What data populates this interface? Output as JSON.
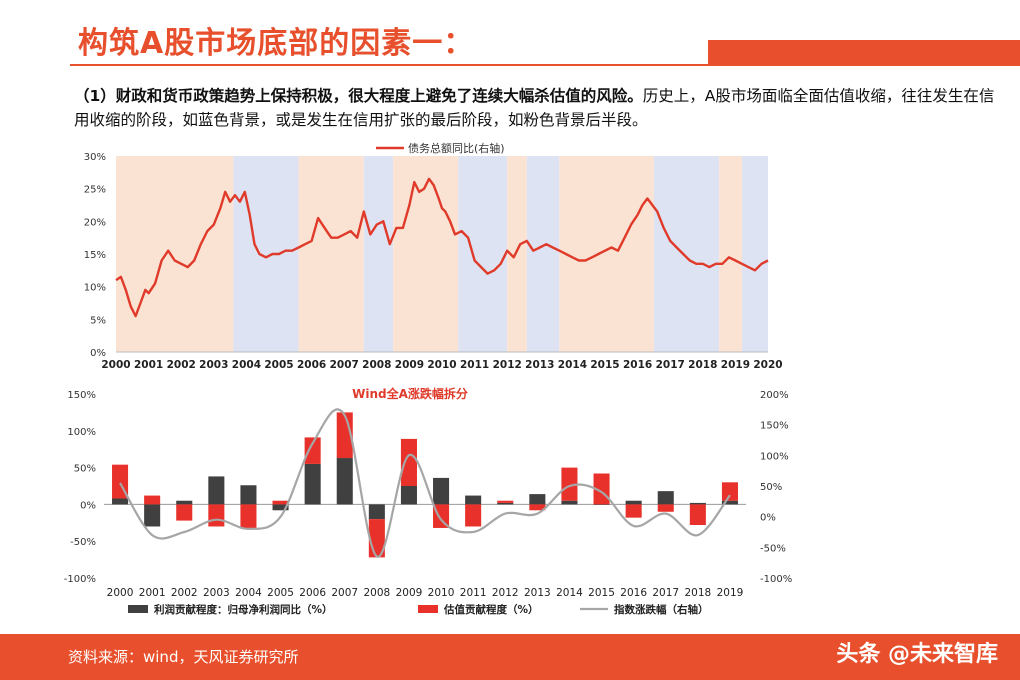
{
  "header": {
    "title": "构筑A股市场底部的因素一：",
    "desc_bold": "（1）财政和货币政策趋势上保持积极，很大程度上避免了连续大幅杀估值的风险。",
    "desc_rest": "历史上，A股市场面临全面估值收缩，往往发生在信用收缩的阶段，如蓝色背景，或是发生在信用扩张的最后阶段，如粉色背景后半段。"
  },
  "footer": {
    "source": "资料来源：wind，天风证券研究所",
    "watermark": "头条 @未来智库"
  },
  "colors": {
    "accent": "#e8502d",
    "pink_band": "#fbe3d3",
    "blue_band": "#dde3f3",
    "line_red": "#e03a2a",
    "bar_dark": "#404040",
    "bar_red": "#e8312a",
    "line_gray": "#a6a6a6"
  },
  "chart_data": [
    {
      "type": "line",
      "legend": [
        "债务总额同比(右轴)"
      ],
      "ylim": [
        0,
        30
      ],
      "yticks": [
        "30%",
        "25%",
        "20%",
        "15%",
        "10%",
        "5%",
        "0%"
      ],
      "xticks": [
        "2000",
        "2001",
        "2002",
        "2003",
        "2004",
        "2005",
        "2006",
        "2007",
        "2008",
        "2009",
        "2010",
        "2011",
        "2012",
        "2013",
        "2014",
        "2015",
        "2016",
        "2017",
        "2018",
        "2019",
        "2020"
      ],
      "background_bands": [
        {
          "from": 2000.0,
          "to": 2003.6,
          "kind": "pink"
        },
        {
          "from": 2003.6,
          "to": 2005.6,
          "kind": "blue"
        },
        {
          "from": 2005.6,
          "to": 2007.6,
          "kind": "pink"
        },
        {
          "from": 2007.6,
          "to": 2008.5,
          "kind": "blue"
        },
        {
          "from": 2008.5,
          "to": 2010.5,
          "kind": "pink"
        },
        {
          "from": 2010.5,
          "to": 2012.0,
          "kind": "blue"
        },
        {
          "from": 2012.0,
          "to": 2012.6,
          "kind": "pink"
        },
        {
          "from": 2012.6,
          "to": 2013.6,
          "kind": "blue"
        },
        {
          "from": 2013.6,
          "to": 2016.5,
          "kind": "pink"
        },
        {
          "from": 2016.5,
          "to": 2018.5,
          "kind": "blue"
        },
        {
          "from": 2018.5,
          "to": 2019.2,
          "kind": "pink"
        },
        {
          "from": 2019.2,
          "to": 2020.0,
          "kind": "blue"
        }
      ],
      "series": [
        {
          "name": "债务总额同比(右轴)",
          "x": [
            2000.0,
            2000.15,
            2000.3,
            2000.45,
            2000.6,
            2000.75,
            2000.9,
            2001.0,
            2001.2,
            2001.4,
            2001.6,
            2001.8,
            2002.0,
            2002.2,
            2002.4,
            2002.6,
            2002.8,
            2003.0,
            2003.2,
            2003.35,
            2003.5,
            2003.65,
            2003.8,
            2003.95,
            2004.1,
            2004.25,
            2004.4,
            2004.6,
            2004.8,
            2005.0,
            2005.2,
            2005.4,
            2005.6,
            2005.8,
            2006.0,
            2006.2,
            2006.4,
            2006.6,
            2006.8,
            2007.0,
            2007.2,
            2007.4,
            2007.6,
            2007.8,
            2008.0,
            2008.2,
            2008.4,
            2008.6,
            2008.8,
            2009.0,
            2009.15,
            2009.3,
            2009.45,
            2009.6,
            2009.75,
            2009.9,
            2010.0,
            2010.1,
            2010.25,
            2010.4,
            2010.6,
            2010.8,
            2011.0,
            2011.2,
            2011.4,
            2011.6,
            2011.8,
            2012.0,
            2012.2,
            2012.4,
            2012.6,
            2012.8,
            2013.0,
            2013.2,
            2013.4,
            2013.6,
            2013.8,
            2014.0,
            2014.2,
            2014.4,
            2014.6,
            2014.8,
            2015.0,
            2015.2,
            2015.4,
            2015.6,
            2015.8,
            2016.0,
            2016.15,
            2016.3,
            2016.45,
            2016.6,
            2016.8,
            2017.0,
            2017.2,
            2017.4,
            2017.6,
            2017.8,
            2018.0,
            2018.2,
            2018.4,
            2018.6,
            2018.8,
            2019.0,
            2019.2,
            2019.4,
            2019.6,
            2019.8,
            2020.0
          ],
          "values": [
            11.0,
            11.5,
            9.5,
            7.0,
            5.5,
            7.5,
            9.5,
            9.0,
            10.5,
            14.0,
            15.5,
            14.0,
            13.5,
            13.0,
            14.0,
            16.5,
            18.5,
            19.5,
            22.0,
            24.5,
            23.0,
            24.0,
            23.0,
            24.5,
            21.0,
            16.5,
            15.0,
            14.5,
            15.0,
            15.0,
            15.5,
            15.5,
            16.0,
            16.5,
            17.0,
            20.5,
            19.0,
            17.5,
            17.5,
            18.0,
            18.5,
            17.5,
            21.5,
            18.0,
            19.5,
            20.0,
            16.5,
            19.0,
            19.0,
            22.5,
            26.0,
            24.5,
            25.0,
            26.5,
            25.5,
            23.5,
            22.0,
            21.5,
            20.0,
            18.0,
            18.5,
            17.5,
            14.0,
            13.0,
            12.0,
            12.5,
            13.5,
            15.5,
            14.5,
            16.5,
            17.0,
            15.5,
            16.0,
            16.5,
            16.0,
            15.5,
            15.0,
            14.5,
            14.0,
            14.0,
            14.5,
            15.0,
            15.5,
            16.0,
            15.5,
            17.5,
            19.5,
            21.0,
            22.5,
            23.5,
            22.5,
            21.5,
            19.0,
            17.0,
            16.0,
            15.0,
            14.0,
            13.5,
            13.5,
            13.0,
            13.5,
            13.5,
            14.5,
            14.0,
            13.5,
            13.0,
            12.5,
            13.5,
            14.0
          ]
        }
      ]
    },
    {
      "type": "bar",
      "title": "Wind全A涨跌幅拆分",
      "categories": [
        "2000",
        "2001",
        "2002",
        "2003",
        "2004",
        "2005",
        "2006",
        "2007",
        "2008",
        "2009",
        "2010",
        "2011",
        "2012",
        "2013",
        "2014",
        "2015",
        "2016",
        "2017",
        "2018",
        "2019"
      ],
      "ylim": [
        -100,
        150
      ],
      "yticks": [
        "150%",
        "100%",
        "50%",
        "0%",
        "-50%",
        "-100%"
      ],
      "y2lim": [
        -100,
        200
      ],
      "y2ticks": [
        "200%",
        "150%",
        "100%",
        "50%",
        "0%",
        "-50%",
        "-100%"
      ],
      "series": [
        {
          "name": "利润贡献程度：归母净利润同比（%）",
          "axis": "left",
          "values": [
            8,
            -30,
            5,
            38,
            26,
            -8,
            55,
            63,
            -20,
            25,
            36,
            12,
            2,
            14,
            5,
            0,
            5,
            18,
            2,
            5
          ]
        },
        {
          "name": "估值贡献程度（%）",
          "axis": "left",
          "values": [
            46,
            12,
            -22,
            -30,
            -32,
            5,
            36,
            62,
            -52,
            64,
            -32,
            -30,
            3,
            -8,
            45,
            42,
            -18,
            -10,
            -28,
            25
          ]
        },
        {
          "name": "指数涨跌幅（右轴）",
          "axis": "right",
          "type": "line",
          "values": [
            55,
            -30,
            -25,
            -5,
            -20,
            0,
            120,
            165,
            -65,
            100,
            -5,
            -25,
            5,
            5,
            50,
            40,
            -15,
            5,
            -30,
            35
          ]
        }
      ],
      "legend": [
        "利润贡献程度：归母净利润同比（%）",
        "估值贡献程度（%）",
        "指数涨跌幅（右轴）"
      ]
    }
  ]
}
